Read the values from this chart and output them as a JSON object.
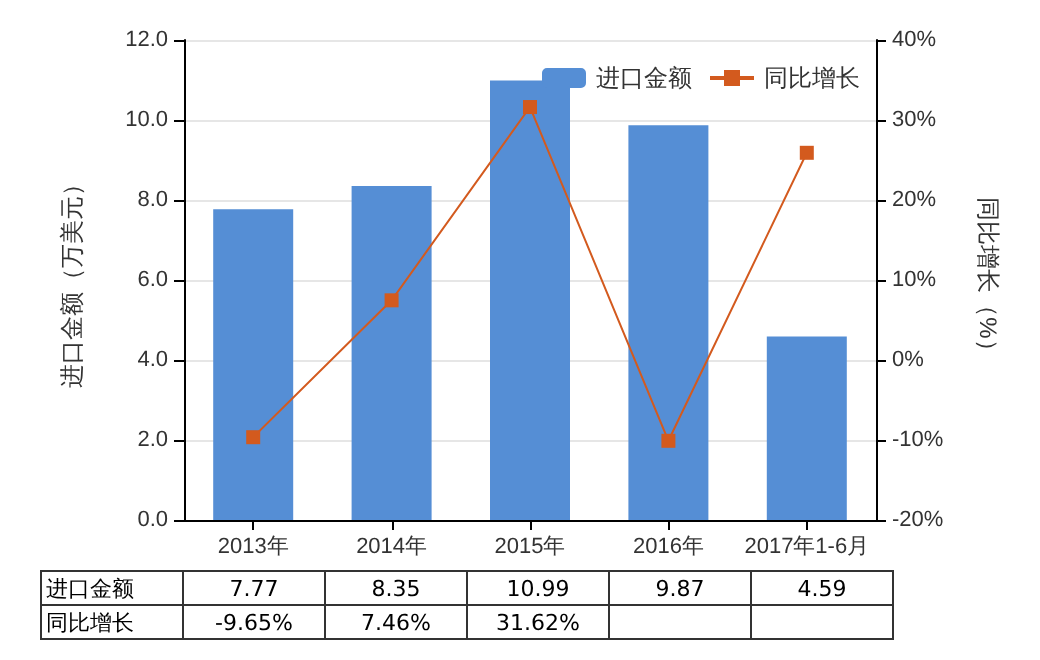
{
  "chart_data": {
    "type": "bar",
    "categories": [
      "2013年",
      "2014年",
      "2015年",
      "2016年",
      "2017年1-6月"
    ],
    "ylabel": "进口金额（万美元）",
    "y2label": "同比增长（%）",
    "series": [
      {
        "name": "进口金额",
        "color": "#558ed5",
        "values": [
          7.77,
          8.35,
          10.99,
          9.87,
          4.59
        ],
        "value_labels": [
          "7.77",
          "8.35",
          "10.99",
          "9.87",
          "4.59"
        ]
      },
      {
        "name": "同比增长",
        "type": "line",
        "axis": "y2",
        "color": "#d35a1e",
        "values": [
          -9.65,
          7.46,
          31.62,
          -10.1,
          25.9
        ],
        "value_labels": [
          "-9.65%",
          "7.46%",
          "31.62%",
          null,
          null
        ]
      }
    ],
    "ylim": [
      0,
      12
    ],
    "yticks": [
      {
        "value": 0,
        "label": "0.0"
      },
      {
        "value": 2,
        "label": "2.0"
      },
      {
        "value": 4,
        "label": "4.0"
      },
      {
        "value": 6,
        "label": "6.0"
      },
      {
        "value": 8,
        "label": "8.0"
      },
      {
        "value": 10,
        "label": "10.0"
      },
      {
        "value": 12,
        "label": "12.0"
      }
    ],
    "y2lim": [
      -20,
      40
    ],
    "y2ticks": [
      {
        "value": -20,
        "label": "-20%"
      },
      {
        "value": -10,
        "label": "-10%"
      },
      {
        "value": 0,
        "label": "0%"
      },
      {
        "value": 10,
        "label": "10%"
      },
      {
        "value": 20,
        "label": "20%"
      },
      {
        "value": 30,
        "label": "30%"
      },
      {
        "value": 40,
        "label": "40%"
      }
    ],
    "grid": "y",
    "legend": "top right",
    "marker": "square",
    "line_style": "solid"
  }
}
